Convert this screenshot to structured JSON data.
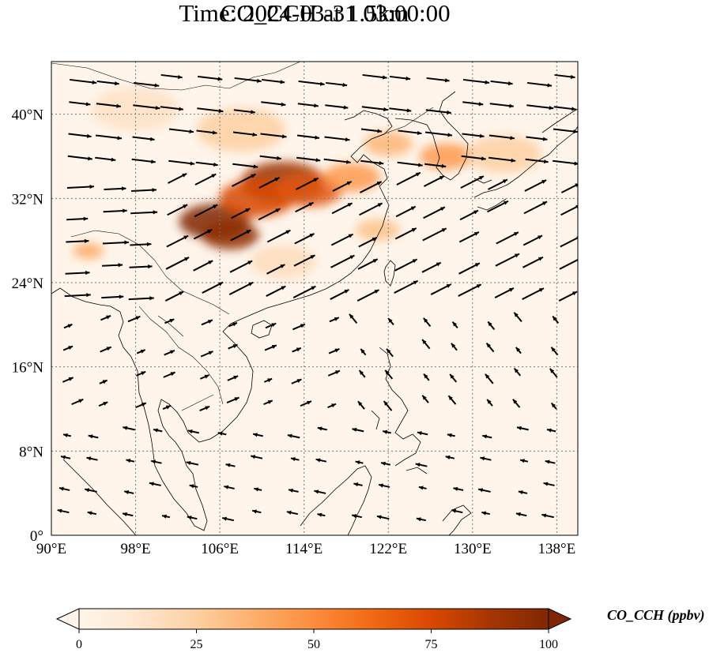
{
  "title_line1": "CO_CCH at 1.5km",
  "title_line2": "Time: 2024-03-31 03:00:00",
  "map": {
    "lon_range": [
      90,
      140
    ],
    "lat_range": [
      0,
      45
    ],
    "lon_ticks": [
      {
        "value": 90,
        "label": "90°E"
      },
      {
        "value": 98,
        "label": "98°E"
      },
      {
        "value": 106,
        "label": "106°E"
      },
      {
        "value": 114,
        "label": "114°E"
      },
      {
        "value": 122,
        "label": "122°E"
      },
      {
        "value": 130,
        "label": "130°E"
      },
      {
        "value": 138,
        "label": "138°E"
      }
    ],
    "lat_ticks": [
      {
        "value": 0,
        "label": "0°"
      },
      {
        "value": 8,
        "label": "8°N"
      },
      {
        "value": 16,
        "label": "16°N"
      },
      {
        "value": 24,
        "label": "24°N"
      },
      {
        "value": 32,
        "label": "32°N"
      },
      {
        "value": 40,
        "label": "40°N"
      }
    ],
    "gridlines": "dotted",
    "background_color": "#fff5eb",
    "plume_regions": [
      {
        "lon": 105.5,
        "lat": 29.8,
        "value": 100
      },
      {
        "lon": 107.0,
        "lat": 28.5,
        "value": 95
      },
      {
        "lon": 112.0,
        "lat": 33.5,
        "value": 90
      },
      {
        "lon": 109.5,
        "lat": 32.0,
        "value": 75
      },
      {
        "lon": 114.5,
        "lat": 32.8,
        "value": 70
      },
      {
        "lon": 118.5,
        "lat": 34.0,
        "value": 45
      },
      {
        "lon": 108.0,
        "lat": 38.5,
        "value": 25
      },
      {
        "lon": 122.0,
        "lat": 37.2,
        "value": 35
      },
      {
        "lon": 127.5,
        "lat": 36.0,
        "value": 45
      },
      {
        "lon": 133.0,
        "lat": 36.2,
        "value": 25
      },
      {
        "lon": 121.0,
        "lat": 29.0,
        "value": 30
      },
      {
        "lon": 93.5,
        "lat": 27.0,
        "value": 40
      },
      {
        "lon": 98.0,
        "lat": 40.5,
        "value": 15
      },
      {
        "lon": 112.0,
        "lat": 26.0,
        "value": 18
      }
    ]
  },
  "colorbar": {
    "min": 0,
    "max": 100,
    "extend": "both",
    "colors": [
      "#fff5eb",
      "#fee6ce",
      "#fdd0a2",
      "#fdae6b",
      "#fd8d3c",
      "#f16913",
      "#d94801",
      "#a63603",
      "#7f2704"
    ],
    "ticks": [
      {
        "value": 0,
        "label": "0"
      },
      {
        "value": 25,
        "label": "25"
      },
      {
        "value": 50,
        "label": "50"
      },
      {
        "value": 75,
        "label": "75"
      },
      {
        "value": 100,
        "label": "100"
      }
    ],
    "label": "CO_CCH (ppbv)"
  }
}
